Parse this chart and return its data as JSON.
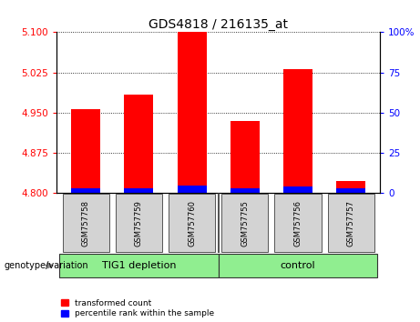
{
  "title": "GDS4818 / 216135_at",
  "samples": [
    "GSM757758",
    "GSM757759",
    "GSM757760",
    "GSM757755",
    "GSM757756",
    "GSM757757"
  ],
  "red_values": [
    4.957,
    4.983,
    5.1,
    4.935,
    5.032,
    4.822
  ],
  "blue_pct": [
    3,
    3,
    5,
    3,
    4,
    3
  ],
  "y_min": 4.8,
  "y_max": 5.1,
  "y_ticks_left": [
    4.8,
    4.875,
    4.95,
    5.025,
    5.1
  ],
  "y_ticks_right": [
    0,
    25,
    50,
    75,
    100
  ],
  "group1_label": "TIG1 depletion",
  "group2_label": "control",
  "group_color": "#90EE90",
  "sample_box_color": "#d3d3d3",
  "xlabel_genotype": "genotype/variation",
  "legend_red": "transformed count",
  "legend_blue": "percentile rank within the sample",
  "bar_width": 0.55
}
